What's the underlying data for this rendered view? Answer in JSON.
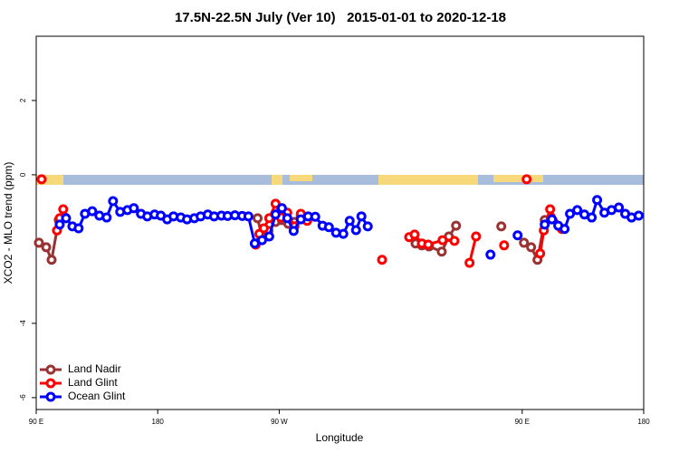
{
  "chart_data": {
    "type": "line",
    "title": "17.5N-22.5N July (Ver 10)   2015-01-01 to 2020-12-18",
    "x_label": "Longitude",
    "y_label": "XCO2 - MLO trend (ppm)",
    "xlim": [
      90,
      540
    ],
    "xticks": [
      {
        "value": 90,
        "label": "90 E"
      },
      180,
      {
        "value": 270,
        "label": "90 W"
      },
      {
        "value": 450,
        "label": "90 E"
      },
      {
        "value": 540,
        "label": "180"
      }
    ],
    "ylim": [
      -6.32,
      3.73
    ],
    "yticks": [
      -6,
      -4,
      0,
      2
    ],
    "legend": "bottom-left",
    "series": [
      {
        "name": "Land Nadir",
        "color": "#993333",
        "x": [
          92,
          97.4,
          101.4,
          106.7,
          111.4,
          null,
          254,
          257.3,
          262,
          267.3,
          272,
          276.7,
          281.3,
          286,
          null,
          371,
          375.7,
          381,
          390.4,
          395.7,
          401,
          null,
          434.5,
          null,
          451.3,
          456.6,
          461.3,
          466.7,
          471.3
        ],
        "values": [
          -1.83,
          -1.95,
          -2.29,
          -1.22,
          -1.15,
          null,
          -1.17,
          -1.68,
          -1.51,
          -1.27,
          -1.22,
          -1.32,
          -1.27,
          -1.1,
          null,
          -1.85,
          -1.9,
          -1.93,
          -2.07,
          -1.66,
          -1.37,
          null,
          -1.39,
          null,
          -1.83,
          -1.95,
          -2.29,
          -1.22,
          -1.15
        ]
      },
      {
        "name": "Land Glint",
        "color": "#ff0000",
        "x": [
          94,
          null,
          105.4,
          107.4,
          110,
          null,
          252.6,
          255.3,
          258.6,
          262.6,
          267.3,
          271.3,
          276,
          281.3,
          286,
          290.7,
          null,
          346.2,
          null,
          366.3,
          370.3,
          375.7,
          380.4,
          391,
          399.8,
          null,
          411,
          415.8,
          null,
          436.6,
          null,
          453.3,
          null,
          463.3,
          466,
          470.7,
          479.4
        ],
        "values": [
          -0.12,
          null,
          -1.5,
          -1.17,
          -0.93,
          null,
          -1.88,
          -1.59,
          -1.44,
          -1.17,
          -0.78,
          -1.15,
          -1.02,
          -1.39,
          -1.05,
          -1.24,
          null,
          -2.29,
          null,
          -1.68,
          -1.61,
          -1.85,
          -1.88,
          -1.76,
          -1.78,
          null,
          -2.37,
          -1.66,
          null,
          -1.9,
          null,
          -0.12,
          null,
          -2.12,
          -1.5,
          -0.93,
          -1.46
        ]
      },
      {
        "name": "Ocean Glint",
        "color": "#0000ff",
        "x": [
          107.4,
          112.1,
          116.8,
          121.4,
          126.1,
          131.5,
          136.8,
          142.2,
          146.9,
          152.2,
          157.6,
          162.3,
          167.6,
          172.3,
          177.7,
          182.3,
          187,
          191.7,
          197.1,
          201.7,
          207.1,
          211.8,
          217.1,
          221.8,
          227.2,
          231.8,
          237.2,
          242.6,
          247.2,
          251.9,
          257.3,
          262.6,
          267.3,
          272,
          276,
          280.7,
          286,
          291.4,
          296.7,
          302.1,
          306.8,
          312.1,
          317.5,
          322.2,
          326.9,
          330.9,
          335.6,
          null,
          426.5,
          null,
          446.6,
          null,
          466.7,
          472,
          476.7,
          481.4,
          485.4,
          490.8,
          496.1,
          501.5,
          505.5,
          510.9,
          516.2,
          521.6,
          526.3,
          531,
          536.3
        ],
        "values": [
          -1.34,
          -1.17,
          -1.39,
          -1.44,
          -1.05,
          -0.98,
          -1.1,
          -1.15,
          -0.71,
          -1.0,
          -0.95,
          -0.9,
          -1.05,
          -1.12,
          -1.07,
          -1.1,
          -1.2,
          -1.12,
          -1.15,
          -1.2,
          -1.17,
          -1.12,
          -1.07,
          -1.12,
          -1.1,
          -1.11,
          -1.09,
          -1.11,
          -1.12,
          -1.85,
          -1.76,
          -1.66,
          -1.07,
          -0.9,
          -1.17,
          -1.51,
          -1.2,
          -1.12,
          -1.13,
          -1.37,
          -1.41,
          -1.56,
          -1.59,
          -1.24,
          -1.49,
          -1.12,
          -1.39,
          null,
          -2.15,
          null,
          -1.63,
          null,
          -1.34,
          -1.2,
          -1.37,
          -1.46,
          -1.05,
          -0.95,
          -1.07,
          -1.15,
          -0.68,
          -1.02,
          -0.95,
          -0.88,
          -1.05,
          -1.15,
          -1.1
        ]
      }
    ]
  }
}
